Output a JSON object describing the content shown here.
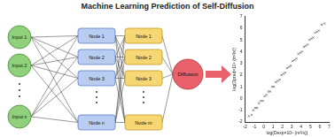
{
  "title": "Machine Learning Prediction of Self-Diffusion",
  "network": {
    "inputs": [
      "Input 1",
      "Input 2",
      "Input x"
    ],
    "hidden1": [
      "Node 1",
      "Node 2",
      "Node 3",
      "Node n"
    ],
    "hidden2": [
      "Node 1",
      "Node 2",
      "Node 3",
      "Node m"
    ],
    "output": "Diffusion"
  },
  "chart_data": {
    "type": "scatter",
    "x_label": "log(Dexp×10⁹ (m²/s))",
    "y_label": "log(Dpred×10⁹ (m²/s))",
    "x": [
      -1.6,
      -1.3,
      -1.1,
      -0.9,
      -0.7,
      -0.5,
      -0.3,
      -0.1,
      0.1,
      0.3,
      0.5,
      0.7,
      0.9,
      1.1,
      1.3,
      1.5,
      1.7,
      1.9,
      2.1,
      2.3,
      2.5,
      2.7,
      2.9,
      3.1,
      3.3,
      3.5,
      3.7,
      3.9,
      4.1,
      4.3,
      4.5,
      4.7,
      4.9,
      5.1,
      5.3,
      5.5,
      5.7,
      5.9,
      6.2,
      6.5
    ],
    "values": [
      -1.5,
      -1.4,
      -1.0,
      -0.8,
      -0.8,
      -0.4,
      -0.2,
      -0.2,
      0.2,
      0.3,
      0.6,
      0.6,
      1.0,
      1.0,
      1.4,
      1.5,
      1.6,
      2.0,
      2.1,
      2.2,
      2.6,
      2.7,
      2.8,
      3.2,
      3.3,
      3.4,
      3.8,
      3.9,
      4.0,
      4.4,
      4.5,
      4.6,
      5.0,
      5.1,
      5.2,
      5.6,
      5.7,
      5.8,
      6.3,
      6.4
    ],
    "xlim": [
      -2,
      7
    ],
    "ylim": [
      -2,
      7
    ],
    "xticks": [
      -2,
      -1,
      0,
      1,
      2,
      3,
      4,
      5,
      6,
      7
    ],
    "yticks": [
      -2,
      -1,
      0,
      1,
      2,
      3,
      4,
      5,
      6,
      7
    ],
    "color": "#444444",
    "marker": "cross",
    "grid": false
  }
}
